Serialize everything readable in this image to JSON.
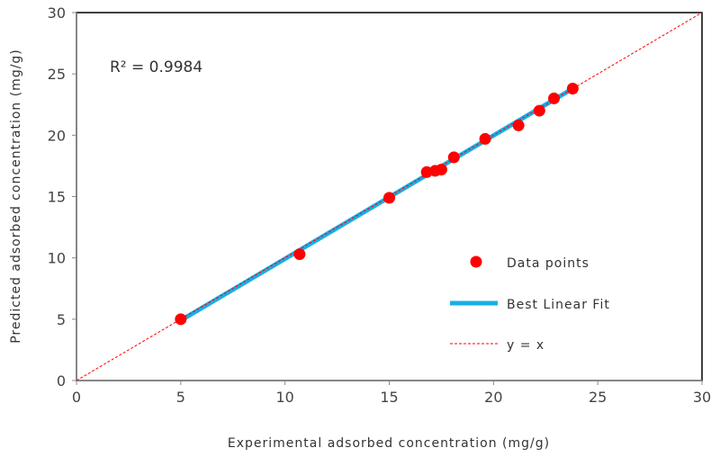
{
  "chart_data": {
    "type": "scatter",
    "title": "",
    "xlabel": "Experimental adsorbed concentration (mg/g)",
    "ylabel": "Predicted adsorbed concentration (mg/g)",
    "xlim": [
      0,
      30
    ],
    "ylim": [
      0,
      30
    ],
    "xticks": [
      0,
      5,
      10,
      15,
      20,
      25,
      30
    ],
    "yticks": [
      0,
      5,
      10,
      15,
      20,
      25,
      30
    ],
    "grid": false,
    "legend_position": "center-right",
    "annotation": "R² = 0.9984",
    "series": [
      {
        "name": "Data points",
        "type": "scatter",
        "color": "#ff0000",
        "x": [
          5.0,
          10.7,
          15.0,
          16.8,
          17.2,
          17.5,
          18.1,
          19.6,
          21.2,
          22.2,
          22.9,
          23.8
        ],
        "y": [
          5.0,
          10.3,
          14.9,
          17.0,
          17.1,
          17.2,
          18.2,
          19.7,
          20.8,
          22.0,
          23.0,
          23.8
        ]
      },
      {
        "name": "Best Linear Fit",
        "type": "line",
        "color": "#1aaee6",
        "x": [
          5.0,
          23.8
        ],
        "y": [
          4.9,
          23.8
        ]
      },
      {
        "name": "y = x",
        "type": "line",
        "style": "dashed",
        "color": "#ff0000",
        "x": [
          0,
          30
        ],
        "y": [
          0,
          30
        ]
      }
    ]
  }
}
